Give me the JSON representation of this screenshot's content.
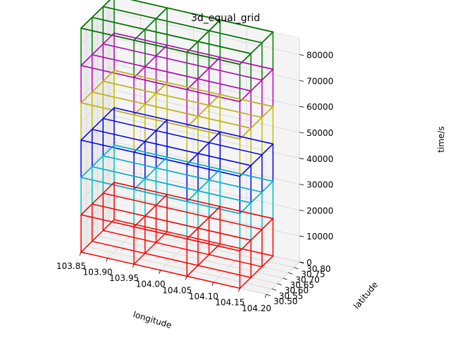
{
  "chart_data": {
    "type": "3d-wireframe-grid",
    "title": "3d_equal_grid",
    "xlabel": "longitude",
    "ylabel": "latitude",
    "zlabel": "time/s",
    "xlim": [
      103.85,
      104.2
    ],
    "ylim": [
      30.5,
      30.8
    ],
    "zlim": [
      0,
      86400
    ],
    "x_ticks": [
      "103.85",
      "103.90",
      "103.95",
      "104.00",
      "104.05",
      "104.10",
      "104.15",
      "104.20"
    ],
    "y_ticks": [
      "30.50",
      "30.55",
      "30.60",
      "30.65",
      "30.70",
      "30.75",
      "30.80"
    ],
    "z_ticks": [
      "0",
      "10000",
      "20000",
      "30000",
      "40000",
      "50000",
      "60000",
      "70000",
      "80000"
    ],
    "x_edges": [
      103.85,
      103.95,
      104.05,
      104.15
    ],
    "y_edges": [
      30.5,
      30.6,
      30.7,
      30.8
    ],
    "layers": [
      {
        "z_bottom": 0,
        "z_top": 14400,
        "color": "#ff0000"
      },
      {
        "z_bottom": 14400,
        "z_top": 28800,
        "color": "#00bfbf"
      },
      {
        "z_bottom": 28800,
        "z_top": 43200,
        "color": "#0000ff"
      },
      {
        "z_bottom": 43200,
        "z_top": 57600,
        "color": "#bfbf00"
      },
      {
        "z_bottom": 57600,
        "z_top": 72000,
        "color": "#bf00bf"
      },
      {
        "z_bottom": 72000,
        "z_top": 86400,
        "color": "#008000"
      },
      {
        "z_bottom": 86400,
        "z_top": 86400,
        "color": "#000000"
      }
    ]
  }
}
